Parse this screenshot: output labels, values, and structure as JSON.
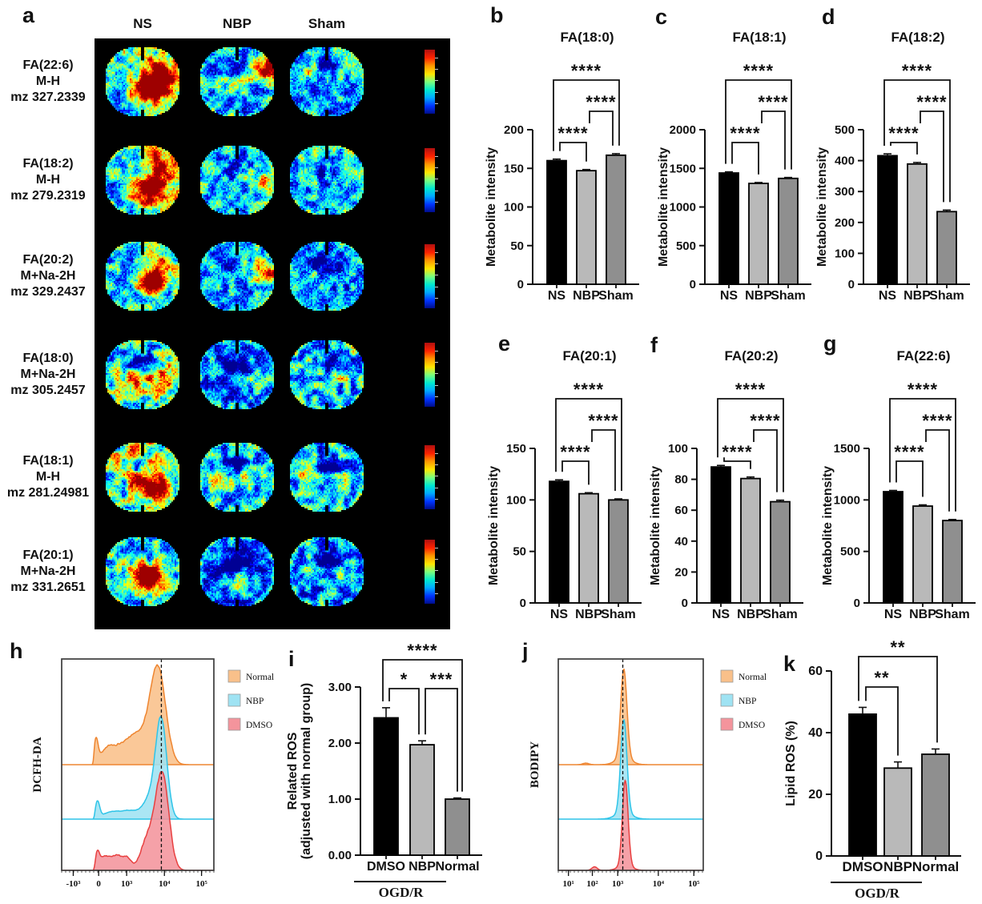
{
  "letters": {
    "a": "a",
    "b": "b",
    "c": "c",
    "d": "d",
    "e": "e",
    "f": "f",
    "g": "g",
    "h": "h",
    "i": "i",
    "j": "j",
    "k": "k"
  },
  "panel_a": {
    "columns": [
      "NS",
      "NBP",
      "Sham"
    ],
    "rows": [
      {
        "lipid": "FA(22:6)",
        "adduct": "M-H",
        "mz": "mz 327.2339"
      },
      {
        "lipid": "FA(18:2)",
        "adduct": "M-H",
        "mz": "mz 279.2319"
      },
      {
        "lipid": "FA(20:2)",
        "adduct": "M+Na-2H",
        "mz": "mz 329.2437"
      },
      {
        "lipid": "FA(18:0)",
        "adduct": "M+Na-2H",
        "mz": "mz 305.2457"
      },
      {
        "lipid": "FA(18:1)",
        "adduct": "M-H",
        "mz": "mz 281.24981"
      },
      {
        "lipid": "FA(20:1)",
        "adduct": "M+Na-2H",
        "mz": "mz 331.2651"
      }
    ],
    "colormap": "jet",
    "colorbar_colors": [
      "#b01010",
      "#ff2200",
      "#ff9500",
      "#ffe600",
      "#7dff7a",
      "#00e8d0",
      "#00aaff",
      "#0033ff",
      "#000d8a"
    ]
  },
  "chart_data": [
    {
      "panel": "b",
      "type": "bar",
      "title": "FA(18:0)",
      "ylabel": [
        "Metabolite intensity"
      ],
      "categories": [
        "NS",
        "NBP",
        "Sham"
      ],
      "values": [
        160,
        147,
        167
      ],
      "errors": [
        2,
        1.5,
        2
      ],
      "yticks": [
        0,
        50,
        100,
        150,
        200
      ],
      "ylim": [
        0,
        200
      ],
      "bar_colors": [
        "#000000",
        "#b9b9b9",
        "#8f8f8f"
      ],
      "significance": [
        {
          "pair": [
            0,
            1
          ],
          "label": "****",
          "row": 0
        },
        {
          "pair": [
            1,
            2
          ],
          "label": "****",
          "row": 1
        },
        {
          "pair": [
            0,
            2
          ],
          "label": "****",
          "row": 2
        }
      ]
    },
    {
      "panel": "c",
      "type": "bar",
      "title": "FA(18:1)",
      "ylabel": [
        "Metabolite intensity"
      ],
      "categories": [
        "NS",
        "NBP",
        "Sham"
      ],
      "values": [
        1440,
        1305,
        1370
      ],
      "errors": [
        15,
        12,
        12
      ],
      "yticks": [
        0,
        500,
        1000,
        1500,
        2000
      ],
      "ylim": [
        0,
        2000
      ],
      "bar_colors": [
        "#000000",
        "#b9b9b9",
        "#8f8f8f"
      ],
      "significance": [
        {
          "pair": [
            0,
            1
          ],
          "label": "****",
          "row": 0
        },
        {
          "pair": [
            1,
            2
          ],
          "label": "****",
          "row": 1
        },
        {
          "pair": [
            0,
            2
          ],
          "label": "****",
          "row": 2
        }
      ]
    },
    {
      "panel": "d",
      "type": "bar",
      "title": "FA(18:2)",
      "ylabel": [
        "Metabolite intensity"
      ],
      "categories": [
        "NS",
        "NBP",
        "Sham"
      ],
      "values": [
        416,
        389,
        235
      ],
      "errors": [
        6,
        5,
        5
      ],
      "yticks": [
        0,
        100,
        200,
        300,
        400,
        500
      ],
      "ylim": [
        0,
        500
      ],
      "bar_colors": [
        "#000000",
        "#b9b9b9",
        "#8f8f8f"
      ],
      "significance": [
        {
          "pair": [
            0,
            1
          ],
          "label": "****",
          "row": 0
        },
        {
          "pair": [
            1,
            2
          ],
          "label": "****",
          "row": 1
        },
        {
          "pair": [
            0,
            2
          ],
          "label": "****",
          "row": 2
        }
      ]
    },
    {
      "panel": "e",
      "type": "bar",
      "title": "FA(20:1)",
      "ylabel": [
        "Metabolite intensity"
      ],
      "categories": [
        "NS",
        "NBP",
        "Sham"
      ],
      "values": [
        118,
        106,
        100
      ],
      "errors": [
        1.5,
        1,
        1
      ],
      "yticks": [
        0,
        50,
        100,
        150
      ],
      "ylim": [
        0,
        150
      ],
      "bar_colors": [
        "#000000",
        "#b9b9b9",
        "#8f8f8f"
      ],
      "significance": [
        {
          "pair": [
            0,
            1
          ],
          "label": "****",
          "row": 0
        },
        {
          "pair": [
            1,
            2
          ],
          "label": "****",
          "row": 1
        },
        {
          "pair": [
            0,
            2
          ],
          "label": "****",
          "row": 2
        }
      ]
    },
    {
      "panel": "f",
      "type": "bar",
      "title": "FA(20:2)",
      "ylabel": [
        "Metabolite intensity"
      ],
      "categories": [
        "NS",
        "NBP",
        "Sham"
      ],
      "values": [
        88,
        80.5,
        65.5
      ],
      "errors": [
        1,
        1,
        1
      ],
      "yticks": [
        0,
        20,
        40,
        60,
        80,
        100
      ],
      "ylim": [
        0,
        100
      ],
      "bar_colors": [
        "#000000",
        "#b9b9b9",
        "#8f8f8f"
      ],
      "significance": [
        {
          "pair": [
            0,
            1
          ],
          "label": "****",
          "row": 0
        },
        {
          "pair": [
            1,
            2
          ],
          "label": "****",
          "row": 1
        },
        {
          "pair": [
            0,
            2
          ],
          "label": "****",
          "row": 2
        }
      ]
    },
    {
      "panel": "g",
      "type": "bar",
      "title": "FA(22:6)",
      "ylabel": [
        "Metabolite intensity"
      ],
      "categories": [
        "NS",
        "NBP",
        "Sham"
      ],
      "values": [
        1080,
        940,
        800
      ],
      "errors": [
        12,
        12,
        10
      ],
      "yticks": [
        0,
        500,
        1000,
        1500
      ],
      "ylim": [
        0,
        1500
      ],
      "bar_colors": [
        "#000000",
        "#b9b9b9",
        "#8f8f8f"
      ],
      "significance": [
        {
          "pair": [
            0,
            1
          ],
          "label": "****",
          "row": 0
        },
        {
          "pair": [
            1,
            2
          ],
          "label": "****",
          "row": 1
        },
        {
          "pair": [
            0,
            2
          ],
          "label": "****",
          "row": 2
        }
      ]
    },
    {
      "panel": "h",
      "type": "area",
      "ylabel": "DCFH-DA",
      "dashed_x": 0.655,
      "x_ticks": [
        {
          "label": "-10³",
          "pos": 0.076
        },
        {
          "label": "0",
          "pos": 0.243
        },
        {
          "label": "10³",
          "pos": 0.427
        },
        {
          "label": "10⁴",
          "pos": 0.675
        },
        {
          "label": "10⁵",
          "pos": 0.919
        }
      ],
      "series": [
        {
          "name": "Normal",
          "fill": "#f9c08a",
          "stroke": "#ee8530",
          "cutoff": 0.205,
          "rough": 0.03,
          "peaks": [
            {
              "c": 0.635,
              "w": 0.05,
              "a": 1.7
            },
            {
              "c": 0.545,
              "w": 0.065,
              "a": 0.48
            },
            {
              "c": 0.225,
              "w": 0.013,
              "a": 0.48
            },
            {
              "c": 0.3,
              "w": 0.045,
              "a": 0.3
            },
            {
              "c": 0.385,
              "w": 0.045,
              "a": 0.26
            },
            {
              "c": 0.46,
              "w": 0.045,
              "a": 0.3
            }
          ]
        },
        {
          "name": "NBP",
          "fill": "#9fe3f3",
          "stroke": "#2ec4e8",
          "cutoff": 0.21,
          "rough": 0.02,
          "peaks": [
            {
              "c": 0.655,
              "w": 0.036,
              "a": 1.8
            },
            {
              "c": 0.585,
              "w": 0.05,
              "a": 0.4
            },
            {
              "c": 0.235,
              "w": 0.014,
              "a": 0.32
            },
            {
              "c": 0.33,
              "w": 0.06,
              "a": 0.14
            },
            {
              "c": 0.45,
              "w": 0.05,
              "a": 0.14
            }
          ]
        },
        {
          "name": "DMSO",
          "fill": "#f4949c",
          "stroke": "#e84040",
          "cutoff": 0.21,
          "rough": 0.035,
          "peaks": [
            {
              "c": 0.665,
              "w": 0.042,
              "a": 1.66
            },
            {
              "c": 0.6,
              "w": 0.045,
              "a": 0.55
            },
            {
              "c": 0.54,
              "w": 0.035,
              "a": 0.3
            },
            {
              "c": 0.28,
              "w": 0.035,
              "a": 0.25
            },
            {
              "c": 0.36,
              "w": 0.035,
              "a": 0.26
            },
            {
              "c": 0.43,
              "w": 0.03,
              "a": 0.22
            },
            {
              "c": 0.235,
              "w": 0.013,
              "a": 0.28
            }
          ]
        }
      ]
    },
    {
      "panel": "i",
      "type": "bar",
      "title": "",
      "ylabel": [
        "Related ROS",
        "(adjusted with normal group)"
      ],
      "categories": [
        "DMSO",
        "NBP",
        "Normal"
      ],
      "values": [
        2.45,
        1.97,
        1.0
      ],
      "errors": [
        0.18,
        0.07,
        0.02
      ],
      "yticks": [
        0,
        1,
        2,
        3
      ],
      "ytick_labels": [
        "0.00",
        "1.00",
        "2.00",
        "3.00"
      ],
      "ylim": [
        0,
        3
      ],
      "bar_colors": [
        "#000000",
        "#b9b9b9",
        "#8f8f8f"
      ],
      "group_label": {
        "text": "OGD/R",
        "span": [
          0,
          1
        ]
      },
      "significance": [
        {
          "pair": [
            0,
            1
          ],
          "label": "*",
          "row": 0
        },
        {
          "pair": [
            1,
            2
          ],
          "label": "***",
          "row": 0
        },
        {
          "pair": [
            0,
            2
          ],
          "label": "****",
          "row": 1
        }
      ]
    },
    {
      "panel": "j",
      "type": "area",
      "ylabel": "BODIPY",
      "dashed_x": 0.445,
      "x_ticks": [
        {
          "label": "10¹",
          "pos": 0.07
        },
        {
          "label": "10²",
          "pos": 0.235
        },
        {
          "label": "10³",
          "pos": 0.41
        },
        {
          "label": "10⁴",
          "pos": 0.69
        },
        {
          "label": "10⁵",
          "pos": 0.935
        }
      ],
      "series": [
        {
          "name": "Normal",
          "fill": "#f9c08a",
          "stroke": "#ee8530",
          "rough": 0.012,
          "peaks": [
            {
              "c": 0.452,
              "w": 0.021,
              "a": 1.7
            },
            {
              "c": 0.45,
              "w": 0.05,
              "a": 0.14
            },
            {
              "c": 0.19,
              "w": 0.02,
              "a": 0.03
            }
          ]
        },
        {
          "name": "NBP",
          "fill": "#9fe3f3",
          "stroke": "#2ec4e8",
          "rough": 0.012,
          "peaks": [
            {
              "c": 0.452,
              "w": 0.021,
              "a": 1.8
            },
            {
              "c": 0.45,
              "w": 0.055,
              "a": 0.12
            }
          ]
        },
        {
          "name": "DMSO",
          "fill": "#f4949c",
          "stroke": "#e84040",
          "rough": 0.015,
          "peaks": [
            {
              "c": 0.462,
              "w": 0.019,
              "a": 1.64
            },
            {
              "c": 0.25,
              "w": 0.018,
              "a": 0.07
            },
            {
              "c": 0.46,
              "w": 0.045,
              "a": 0.1
            }
          ]
        }
      ]
    },
    {
      "panel": "k",
      "type": "bar",
      "title": "",
      "ylabel": [
        "Lipid ROS (%)"
      ],
      "categories": [
        "DMSO",
        "NBP",
        "Normal"
      ],
      "values": [
        46,
        28.5,
        33
      ],
      "errors": [
        2.2,
        2,
        1.7
      ],
      "yticks": [
        0,
        20,
        40,
        60
      ],
      "ylim": [
        0,
        60
      ],
      "bar_colors": [
        "#000000",
        "#b9b9b9",
        "#8f8f8f"
      ],
      "group_label": {
        "text": "OGD/R",
        "span": [
          0,
          1
        ]
      },
      "significance": [
        {
          "pair": [
            0,
            1
          ],
          "label": "**",
          "row": 0
        },
        {
          "pair": [
            0,
            2
          ],
          "label": "**",
          "row": 1
        }
      ]
    }
  ]
}
